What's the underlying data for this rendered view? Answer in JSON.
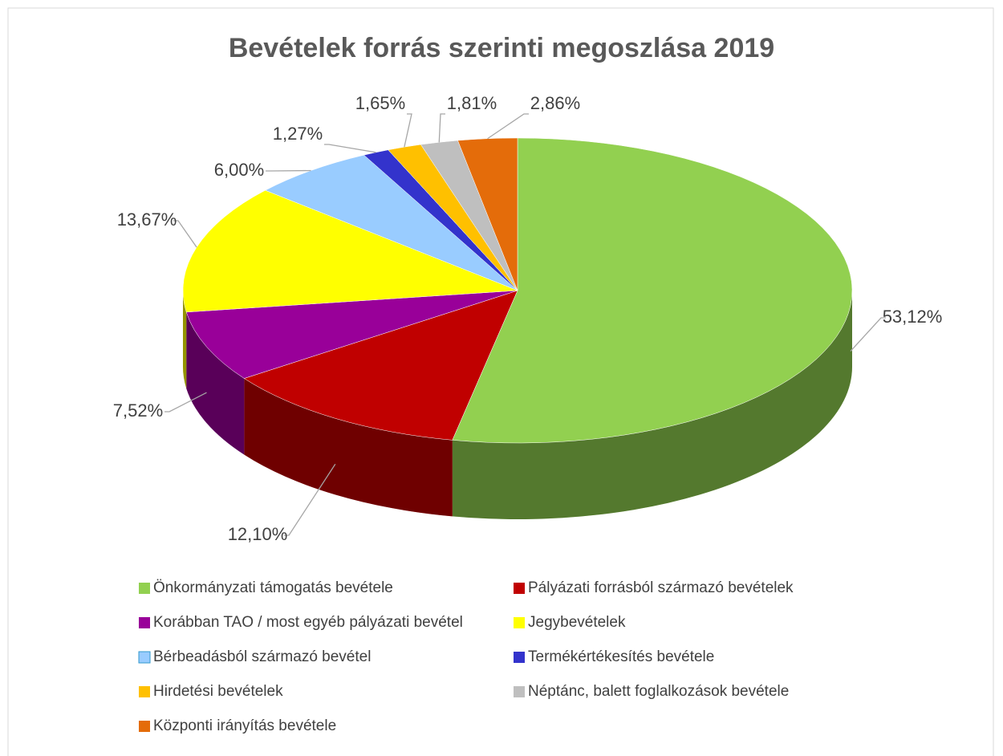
{
  "chart_data": {
    "type": "pie",
    "title": "Bevételek forrás szerinti megoszlása 2019",
    "categories": [
      "Önkormányzati támogatás bevétele",
      "Pályázati forrásból származó bevételek",
      "Korábban TAO / most egyéb pályázati bevétel",
      "Jegybevételek",
      "Bérbeadásból származó bevétel",
      "Termékértékesítés bevétele",
      "Hirdetési bevételek",
      "Néptánc, balett foglalkozások bevétele",
      "Központi irányítás bevétele"
    ],
    "values": [
      53.12,
      12.1,
      7.52,
      13.67,
      6.0,
      1.27,
      1.65,
      1.81,
      2.86
    ],
    "value_labels": [
      "53,12%",
      "12,10%",
      "7,52%",
      "13,67%",
      "6,00%",
      "1,27%",
      "1,65%",
      "1,81%",
      "2,86%"
    ],
    "colors": [
      "#92d050",
      "#c00000",
      "#990099",
      "#ffff00",
      "#99ccff",
      "#3333cc",
      "#ffc000",
      "#bfbfbf",
      "#e46c0a"
    ],
    "legend": "bottom"
  }
}
